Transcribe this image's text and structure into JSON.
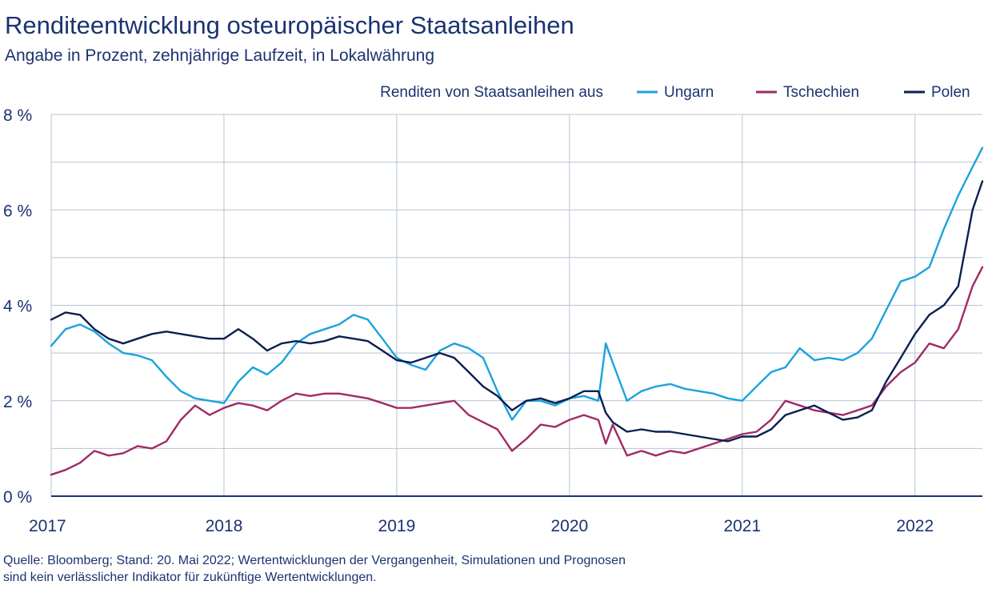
{
  "chart_data": {
    "type": "line",
    "title": "Renditeentwicklung osteuropäischer Staatsanleihen",
    "subtitle": "Angabe in Prozent, zehnjährige Laufzeit, in Lokalwährung",
    "legend_title": "Renditen von Staatsanleihen aus",
    "legend_position": "top-right",
    "grid": true,
    "x_ticks": [
      "2017",
      "2018",
      "2019",
      "2020",
      "2021",
      "2022"
    ],
    "y_ticks": [
      "0 %",
      "2 %",
      "4 %",
      "6 %",
      "8 %"
    ],
    "xlim": [
      2017.0,
      2022.39
    ],
    "ylim": [
      0,
      8
    ],
    "x": [
      2017.0,
      2017.083,
      2017.167,
      2017.25,
      2017.333,
      2017.417,
      2017.5,
      2017.583,
      2017.667,
      2017.75,
      2017.833,
      2017.917,
      2018.0,
      2018.083,
      2018.167,
      2018.25,
      2018.333,
      2018.417,
      2018.5,
      2018.583,
      2018.667,
      2018.75,
      2018.833,
      2018.917,
      2019.0,
      2019.083,
      2019.167,
      2019.25,
      2019.333,
      2019.417,
      2019.5,
      2019.583,
      2019.667,
      2019.75,
      2019.833,
      2019.917,
      2020.0,
      2020.083,
      2020.167,
      2020.21,
      2020.25,
      2020.333,
      2020.417,
      2020.5,
      2020.583,
      2020.667,
      2020.75,
      2020.833,
      2020.917,
      2021.0,
      2021.083,
      2021.167,
      2021.25,
      2021.333,
      2021.417,
      2021.5,
      2021.583,
      2021.667,
      2021.75,
      2021.833,
      2021.917,
      2022.0,
      2022.083,
      2022.167,
      2022.25,
      2022.333,
      2022.39
    ],
    "series": [
      {
        "name": "Ungarn",
        "color": "#1ba3dc",
        "values": [
          3.15,
          3.5,
          3.6,
          3.45,
          3.2,
          3.0,
          2.95,
          2.85,
          2.5,
          2.2,
          2.05,
          2.0,
          1.95,
          2.4,
          2.7,
          2.55,
          2.8,
          3.2,
          3.4,
          3.5,
          3.6,
          3.8,
          3.7,
          3.3,
          2.9,
          2.75,
          2.65,
          3.05,
          3.2,
          3.1,
          2.9,
          2.2,
          1.6,
          2.0,
          2.0,
          1.9,
          2.05,
          2.1,
          2.0,
          3.2,
          2.8,
          2.0,
          2.2,
          2.3,
          2.35,
          2.25,
          2.2,
          2.15,
          2.05,
          2.0,
          2.3,
          2.6,
          2.7,
          3.1,
          2.85,
          2.9,
          2.85,
          3.0,
          3.3,
          3.9,
          4.5,
          4.6,
          4.8,
          5.6,
          6.3,
          6.9,
          7.3
        ]
      },
      {
        "name": "Tschechien",
        "color": "#a12a65",
        "values": [
          0.45,
          0.55,
          0.7,
          0.95,
          0.85,
          0.9,
          1.05,
          1.0,
          1.15,
          1.6,
          1.9,
          1.7,
          1.85,
          1.95,
          1.9,
          1.8,
          2.0,
          2.15,
          2.1,
          2.15,
          2.15,
          2.1,
          2.05,
          1.95,
          1.85,
          1.85,
          1.9,
          1.95,
          2.0,
          1.7,
          1.55,
          1.4,
          0.95,
          1.2,
          1.5,
          1.45,
          1.6,
          1.7,
          1.6,
          1.1,
          1.5,
          0.85,
          0.95,
          0.85,
          0.95,
          0.9,
          1.0,
          1.1,
          1.2,
          1.3,
          1.35,
          1.6,
          2.0,
          1.9,
          1.8,
          1.75,
          1.7,
          1.8,
          1.9,
          2.3,
          2.6,
          2.8,
          3.2,
          3.1,
          3.5,
          4.4,
          4.8
        ]
      },
      {
        "name": "Polen",
        "color": "#0c1f52",
        "values": [
          3.7,
          3.85,
          3.8,
          3.5,
          3.3,
          3.2,
          3.3,
          3.4,
          3.45,
          3.4,
          3.35,
          3.3,
          3.3,
          3.5,
          3.3,
          3.05,
          3.2,
          3.25,
          3.2,
          3.25,
          3.35,
          3.3,
          3.25,
          3.05,
          2.85,
          2.8,
          2.9,
          3.0,
          2.9,
          2.6,
          2.3,
          2.1,
          1.8,
          2.0,
          2.05,
          1.95,
          2.05,
          2.2,
          2.2,
          1.75,
          1.55,
          1.35,
          1.4,
          1.35,
          1.35,
          1.3,
          1.25,
          1.2,
          1.15,
          1.25,
          1.25,
          1.4,
          1.7,
          1.8,
          1.9,
          1.75,
          1.6,
          1.65,
          1.8,
          2.4,
          2.9,
          3.4,
          3.8,
          4.0,
          4.4,
          6.0,
          6.6
        ]
      }
    ]
  },
  "footer": {
    "line1": "Quelle: Bloomberg; Stand: 20. Mai 2022; Wertentwicklungen der Vergangenheit, Simulationen und Prognosen",
    "line2": "sind kein verlässlicher Indikator für zukünftige Wertentwicklungen."
  }
}
